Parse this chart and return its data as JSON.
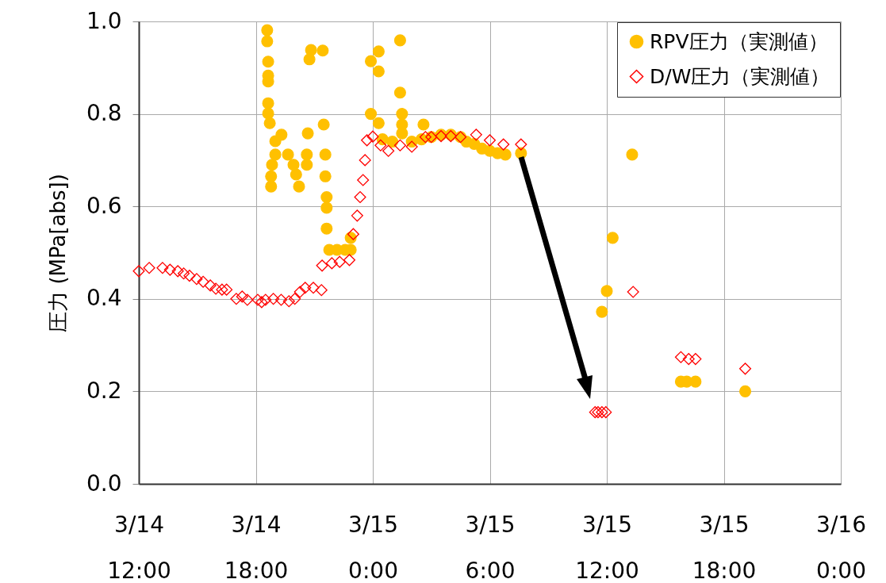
{
  "chart_data": {
    "type": "scatter",
    "ylabel": "圧力 (MPa[abs])",
    "xlim": [
      "--03-14T12:00",
      "--03-16T00:00"
    ],
    "xticks": [
      {
        "value": "--03-14T12:00",
        "label": "3/14 12:00"
      },
      {
        "value": "--03-14T18:00",
        "label": "3/14 18:00"
      },
      {
        "value": "--03-15T00:00",
        "label": "3/15 0:00"
      },
      {
        "value": "--03-15T06:00",
        "label": "3/15 6:00"
      },
      {
        "value": "--03-15T12:00",
        "label": "3/15 12:00"
      },
      {
        "value": "--03-15T18:00",
        "label": "3/15 18:00"
      },
      {
        "value": "--03-16T00:00",
        "label": "3/16 0:00"
      }
    ],
    "ylim": [
      0,
      1
    ],
    "yticks": [
      {
        "value": 0,
        "label": "0.0"
      },
      0.2,
      0.4,
      0.6,
      0.8,
      {
        "value": 1,
        "label": "1.0"
      }
    ],
    "grid": true,
    "legend": "top right",
    "series": [
      {
        "name": "RPV圧力（実測値）",
        "color": "#ffc000",
        "marker": "circle",
        "x": [
          "--03-14T18:35",
          "--03-14T18:35",
          "--03-14T18:38",
          "--03-14T18:38",
          "--03-14T18:38",
          "--03-14T18:38",
          "--03-14T18:38",
          "--03-14T18:43",
          "--03-14T18:47",
          "--03-14T18:47",
          "--03-14T18:50",
          "--03-14T19:00",
          "--03-14T19:00",
          "--03-14T19:19",
          "--03-14T19:39",
          "--03-14T19:56",
          "--03-14T20:04",
          "--03-14T20:13",
          "--03-14T20:37",
          "--03-14T20:37",
          "--03-14T20:40",
          "--03-14T20:45",
          "--03-14T20:50",
          "--03-14T21:26",
          "--03-14T21:29",
          "--03-14T21:34",
          "--03-14T21:34",
          "--03-14T21:38",
          "--03-14T21:38",
          "--03-14T21:38",
          "--03-14T21:46",
          "--03-14T22:10",
          "--03-14T22:35",
          "--03-14T22:52",
          "--03-14T22:52",
          "--03-14T23:54",
          "--03-14T23:54",
          "--03-15T00:18",
          "--03-15T00:18",
          "--03-15T00:18",
          "--03-15T01:24",
          "--03-15T01:24",
          "--03-15T01:30",
          "--03-15T01:30",
          "--03-15T01:30",
          "--03-15T02:36",
          "--03-15T00:30",
          "--03-15T01:00",
          "--03-15T02:00",
          "--03-15T02:30",
          "--03-15T03:00",
          "--03-15T03:30",
          "--03-15T04:00",
          "--03-15T04:30",
          "--03-15T04:48",
          "--03-15T05:12",
          "--03-15T05:36",
          "--03-15T06:00",
          "--03-15T06:24",
          "--03-15T06:48",
          "--03-15T07:36",
          "--03-15T11:45",
          "--03-15T12:00",
          "--03-15T12:18",
          "--03-15T13:18",
          "--03-15T15:48",
          "--03-15T16:06",
          "--03-15T16:33",
          "--03-15T19:06"
        ],
        "values": [
          0.981,
          0.957,
          0.913,
          0.883,
          0.87,
          0.823,
          0.801,
          0.78,
          0.643,
          0.665,
          0.69,
          0.712,
          0.741,
          0.755,
          0.712,
          0.69,
          0.669,
          0.643,
          0.712,
          0.69,
          0.758,
          0.918,
          0.938,
          0.937,
          0.777,
          0.712,
          0.665,
          0.62,
          0.597,
          0.552,
          0.506,
          0.506,
          0.506,
          0.506,
          0.532,
          0.914,
          0.8,
          0.935,
          0.892,
          0.78,
          0.959,
          0.846,
          0.8,
          0.777,
          0.758,
          0.777,
          0.745,
          0.74,
          0.74,
          0.745,
          0.75,
          0.755,
          0.755,
          0.75,
          0.74,
          0.735,
          0.725,
          0.72,
          0.715,
          0.712,
          0.715,
          0.372,
          0.417,
          0.532,
          0.712,
          0.221,
          0.221,
          0.221,
          0.2
        ]
      },
      {
        "name": "D/W圧力（実測値）",
        "color": "#ff0000",
        "marker": "diamond",
        "x": [
          "--03-14T12:00",
          "--03-14T12:32",
          "--03-14T13:13",
          "--03-14T13:36",
          "--03-14T14:00",
          "--03-14T14:18",
          "--03-14T14:36",
          "--03-14T14:58",
          "--03-14T15:18",
          "--03-14T15:40",
          "--03-14T15:57",
          "--03-14T16:16",
          "--03-14T16:30",
          "--03-14T17:00",
          "--03-14T17:18",
          "--03-14T17:34",
          "--03-14T18:06",
          "--03-14T18:18",
          "--03-14T18:30",
          "--03-14T18:54",
          "--03-14T19:18",
          "--03-14T19:42",
          "--03-14T20:00",
          "--03-14T20:16",
          "--03-14T20:32",
          "--03-14T20:57",
          "--03-14T21:22",
          "--03-14T21:24",
          "--03-14T21:54",
          "--03-14T22:18",
          "--03-14T22:48",
          "--03-14T23:00",
          "--03-14T23:12",
          "--03-14T23:21",
          "--03-14T23:30",
          "--03-14T23:36",
          "--03-14T23:42",
          "--03-15T00:00",
          "--03-15T00:24",
          "--03-15T00:48",
          "--03-15T01:24",
          "--03-15T02:00",
          "--03-15T02:42",
          "--03-15T03:00",
          "--03-15T03:30",
          "--03-15T04:00",
          "--03-15T04:30",
          "--03-15T05:18",
          "--03-15T06:00",
          "--03-15T06:42",
          "--03-15T07:36",
          "--03-15T11:24",
          "--03-15T11:33",
          "--03-15T11:45",
          "--03-15T11:57",
          "--03-15T13:21",
          "--03-15T15:48",
          "--03-15T16:12",
          "--03-15T16:33",
          "--03-15T19:06"
        ],
        "values": [
          0.46,
          0.467,
          0.467,
          0.463,
          0.46,
          0.455,
          0.45,
          0.443,
          0.437,
          0.429,
          0.422,
          0.42,
          0.42,
          0.4,
          0.405,
          0.398,
          0.398,
          0.393,
          0.398,
          0.4,
          0.398,
          0.395,
          0.4,
          0.415,
          0.424,
          0.424,
          0.419,
          0.472,
          0.477,
          0.48,
          0.484,
          0.54,
          0.58,
          0.62,
          0.657,
          0.7,
          0.743,
          0.751,
          0.732,
          0.72,
          0.732,
          0.729,
          0.75,
          0.75,
          0.752,
          0.752,
          0.75,
          0.755,
          0.743,
          0.734,
          0.734,
          0.155,
          0.155,
          0.155,
          0.155,
          0.415,
          0.274,
          0.27,
          0.27,
          0.249
        ]
      }
    ]
  }
}
